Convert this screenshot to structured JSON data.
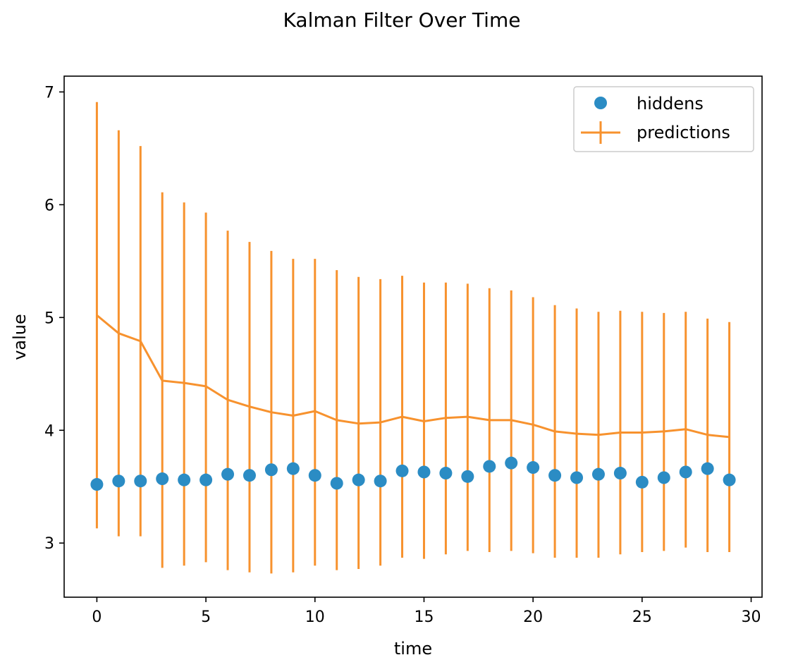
{
  "chart_data": {
    "type": "scatter",
    "title": "Kalman Filter Over Time",
    "xlabel": "time",
    "ylabel": "value",
    "xlim": [
      -1.5,
      30.5
    ],
    "ylim": [
      2.52,
      7.14
    ],
    "xticks": [
      0,
      5,
      10,
      15,
      20,
      25,
      30
    ],
    "yticks": [
      3,
      4,
      5,
      6,
      7
    ],
    "legend_position": "top-right",
    "grid": false,
    "x": [
      0,
      1,
      2,
      3,
      4,
      5,
      6,
      7,
      8,
      9,
      10,
      11,
      12,
      13,
      14,
      15,
      16,
      17,
      18,
      19,
      20,
      21,
      22,
      23,
      24,
      25,
      26,
      27,
      28,
      29
    ],
    "series": [
      {
        "name": "hiddens",
        "kind": "scatter",
        "color": "#2b8cc4",
        "values": [
          3.52,
          3.55,
          3.55,
          3.57,
          3.56,
          3.56,
          3.61,
          3.6,
          3.65,
          3.66,
          3.6,
          3.53,
          3.56,
          3.55,
          3.64,
          3.63,
          3.62,
          3.59,
          3.68,
          3.71,
          3.67,
          3.6,
          3.58,
          3.61,
          3.62,
          3.54,
          3.58,
          3.63,
          3.66,
          3.56
        ]
      },
      {
        "name": "predictions",
        "kind": "errorbar",
        "color": "#f7922e",
        "values": [
          5.02,
          4.86,
          4.79,
          4.44,
          4.42,
          4.39,
          4.27,
          4.21,
          4.16,
          4.13,
          4.17,
          4.09,
          4.06,
          4.07,
          4.12,
          4.08,
          4.11,
          4.12,
          4.09,
          4.09,
          4.05,
          3.99,
          3.97,
          3.96,
          3.98,
          3.98,
          3.99,
          4.01,
          3.96,
          3.94
        ],
        "lower": [
          3.13,
          3.06,
          3.06,
          2.78,
          2.8,
          2.83,
          2.76,
          2.74,
          2.73,
          2.74,
          2.8,
          2.76,
          2.77,
          2.8,
          2.87,
          2.86,
          2.9,
          2.93,
          2.92,
          2.93,
          2.91,
          2.87,
          2.87,
          2.87,
          2.9,
          2.92,
          2.93,
          2.96,
          2.92,
          2.92
        ],
        "upper": [
          6.91,
          6.66,
          6.52,
          6.11,
          6.02,
          5.93,
          5.77,
          5.67,
          5.59,
          5.52,
          5.52,
          5.42,
          5.36,
          5.34,
          5.37,
          5.31,
          5.31,
          5.3,
          5.26,
          5.24,
          5.18,
          5.11,
          5.08,
          5.05,
          5.06,
          5.05,
          5.04,
          5.05,
          4.99,
          4.96
        ]
      }
    ]
  }
}
